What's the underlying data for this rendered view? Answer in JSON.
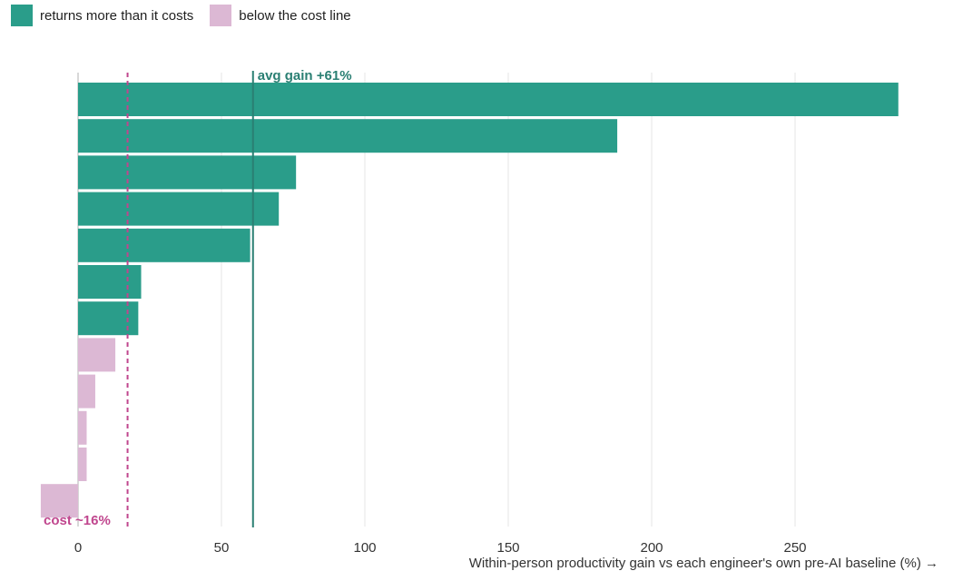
{
  "legend": {
    "above": {
      "label": "returns more than it costs",
      "color": "#2a9d8a"
    },
    "below": {
      "label": "below the cost line",
      "color": "#dcb8d4"
    }
  },
  "chart_data": {
    "type": "bar",
    "orientation": "horizontal",
    "title": "",
    "xlabel": "Within-person productivity gain vs each engineer's own pre-AI baseline (%) →",
    "ylabel": "",
    "xlim": [
      -13,
      287
    ],
    "x_ticks": [
      0,
      50,
      100,
      150,
      200,
      250
    ],
    "grid": "vertical",
    "legend_placement": "top-left",
    "values": [
      286,
      188,
      76,
      70,
      60,
      22,
      21,
      13,
      6,
      3,
      3,
      -13
    ],
    "series": [
      {
        "name": "returns more than it costs",
        "color": "#2a9d8a"
      },
      {
        "name": "below the cost line",
        "color": "#dcb8d4"
      }
    ],
    "reference_lines": {
      "average": {
        "label": "avg gain +61%",
        "value": 61,
        "color": "#2a7f73",
        "style": "solid"
      },
      "cost": {
        "label": "cost ~16%",
        "value": 16,
        "color": "#c0468e",
        "style": "dashed"
      }
    }
  }
}
